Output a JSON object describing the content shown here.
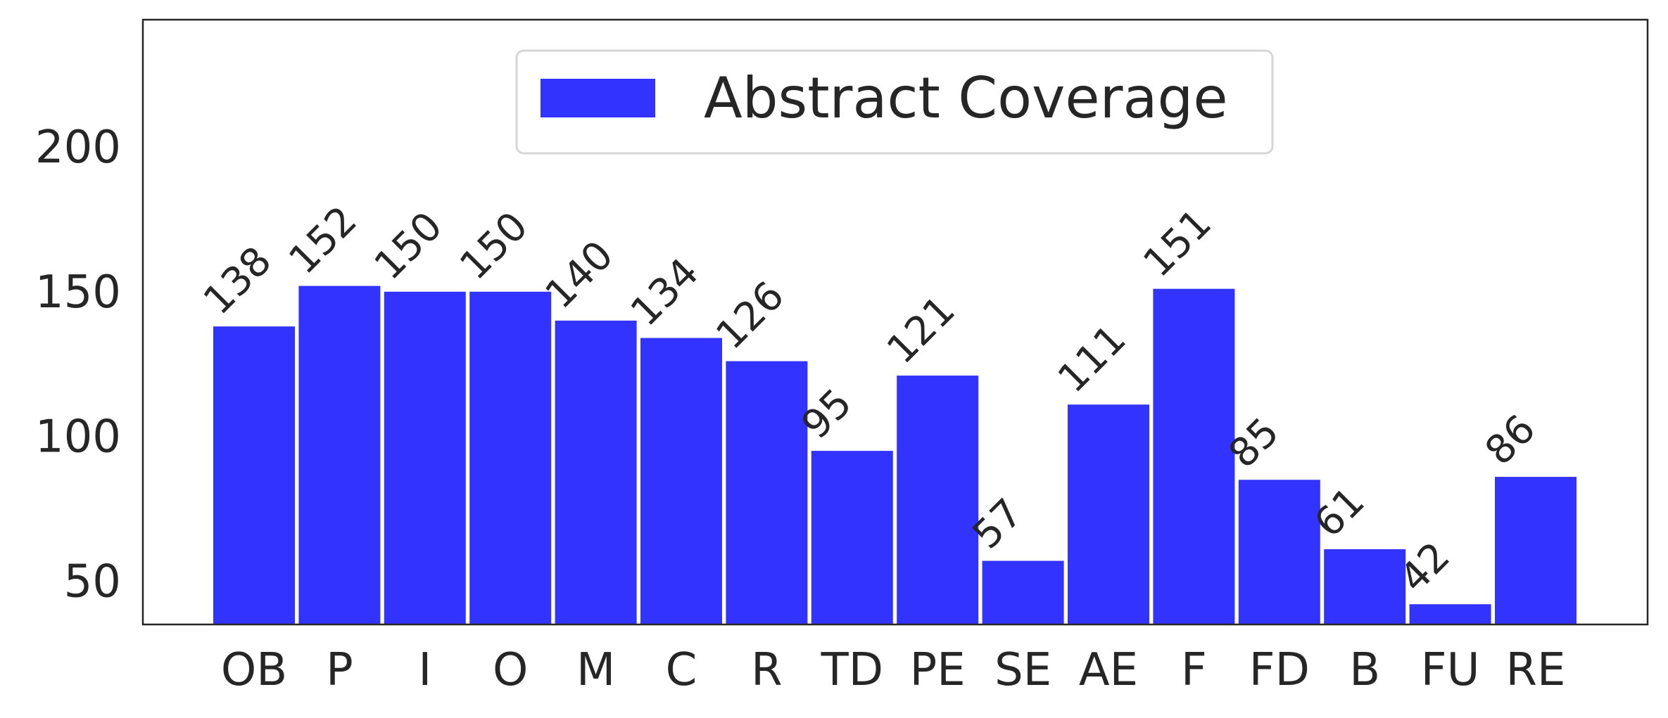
{
  "chart_data": {
    "type": "bar",
    "categories": [
      "OB",
      "P",
      "I",
      "O",
      "M",
      "C",
      "R",
      "TD",
      "PE",
      "SE",
      "AE",
      "F",
      "FD",
      "B",
      "FU",
      "RE"
    ],
    "series": [
      {
        "name": "Abstract Coverage",
        "color": "#3333ff",
        "values": [
          138,
          152,
          150,
          150,
          140,
          134,
          126,
          95,
          121,
          57,
          111,
          151,
          85,
          61,
          42,
          86
        ]
      }
    ],
    "yticks": [
      50,
      100,
      150,
      200
    ],
    "ylim": [
      35,
      244
    ],
    "legend_position": "top-center",
    "grid": false
  }
}
